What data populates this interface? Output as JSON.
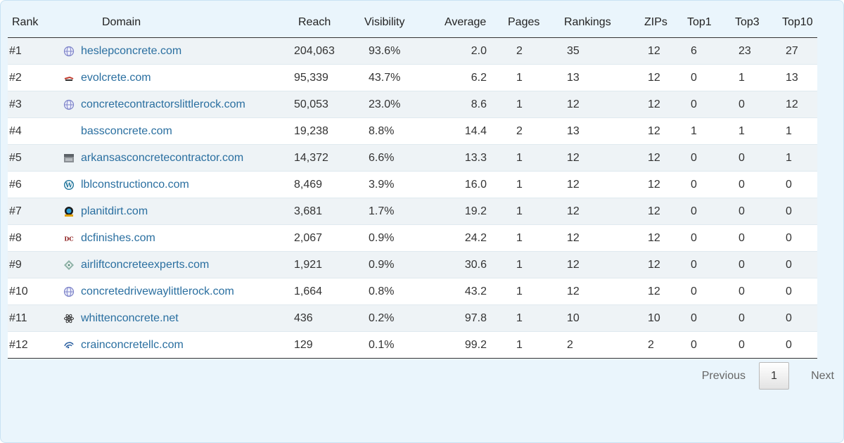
{
  "colors": {
    "panel_background": "#eaf5fc",
    "link": "#2a6fa0",
    "stripe": "#eef3f6"
  },
  "table": {
    "headers": {
      "rank": "Rank",
      "domain": "Domain",
      "reach": "Reach",
      "visibility": "Visibility",
      "average": "Average",
      "pages": "Pages",
      "rankings": "Rankings",
      "zips": "ZIPs",
      "top1": "Top1",
      "top3": "Top3",
      "top10": "Top10"
    },
    "rows": [
      {
        "rank": "#1",
        "icon": "globe-icon",
        "domain": "heslepconcrete.com",
        "reach": "204,063",
        "visibility": "93.6%",
        "average": "2.0",
        "pages": "2",
        "rankings": "35",
        "zips": "12",
        "top1": "6",
        "top3": "23",
        "top10": "27"
      },
      {
        "rank": "#2",
        "icon": "evolcrete-logo-icon",
        "domain": "evolcrete.com",
        "reach": "95,339",
        "visibility": "43.7%",
        "average": "6.2",
        "pages": "1",
        "rankings": "13",
        "zips": "12",
        "top1": "0",
        "top3": "1",
        "top10": "13"
      },
      {
        "rank": "#3",
        "icon": "globe-icon",
        "domain": "concretecontractorslittlerock.com",
        "reach": "50,053",
        "visibility": "23.0%",
        "average": "8.6",
        "pages": "1",
        "rankings": "12",
        "zips": "12",
        "top1": "0",
        "top3": "0",
        "top10": "12"
      },
      {
        "rank": "#4",
        "icon": "blank-icon",
        "domain": "bassconcrete.com",
        "reach": "19,238",
        "visibility": "8.8%",
        "average": "14.4",
        "pages": "2",
        "rankings": "13",
        "zips": "12",
        "top1": "1",
        "top3": "1",
        "top10": "1"
      },
      {
        "rank": "#5",
        "icon": "photo-thumbnail-icon",
        "domain": "arkansasconcretecontractor.com",
        "reach": "14,372",
        "visibility": "6.6%",
        "average": "13.3",
        "pages": "1",
        "rankings": "12",
        "zips": "12",
        "top1": "0",
        "top3": "0",
        "top10": "1"
      },
      {
        "rank": "#6",
        "icon": "wordpress-icon",
        "domain": "lblconstructionco.com",
        "reach": "8,469",
        "visibility": "3.9%",
        "average": "16.0",
        "pages": "1",
        "rankings": "12",
        "zips": "12",
        "top1": "0",
        "top3": "0",
        "top10": "0"
      },
      {
        "rank": "#7",
        "icon": "planitdirt-logo-icon",
        "domain": "planitdirt.com",
        "reach": "3,681",
        "visibility": "1.7%",
        "average": "19.2",
        "pages": "1",
        "rankings": "12",
        "zips": "12",
        "top1": "0",
        "top3": "0",
        "top10": "0"
      },
      {
        "rank": "#8",
        "icon": "dc-logo-icon",
        "domain": "dcfinishes.com",
        "reach": "2,067",
        "visibility": "0.9%",
        "average": "24.2",
        "pages": "1",
        "rankings": "12",
        "zips": "12",
        "top1": "0",
        "top3": "0",
        "top10": "0"
      },
      {
        "rank": "#9",
        "icon": "diamond-logo-icon",
        "domain": "airliftconcreteexperts.com",
        "reach": "1,921",
        "visibility": "0.9%",
        "average": "30.6",
        "pages": "1",
        "rankings": "12",
        "zips": "12",
        "top1": "0",
        "top3": "0",
        "top10": "0"
      },
      {
        "rank": "#10",
        "icon": "globe-icon",
        "domain": "concretedrivewaylittlerock.com",
        "reach": "1,664",
        "visibility": "0.8%",
        "average": "43.2",
        "pages": "1",
        "rankings": "12",
        "zips": "12",
        "top1": "0",
        "top3": "0",
        "top10": "0"
      },
      {
        "rank": "#11",
        "icon": "atom-icon",
        "domain": "whittenconcrete.net",
        "reach": "436",
        "visibility": "0.2%",
        "average": "97.8",
        "pages": "1",
        "rankings": "10",
        "zips": "10",
        "top1": "0",
        "top3": "0",
        "top10": "0"
      },
      {
        "rank": "#12",
        "icon": "swirl-logo-icon",
        "domain": "crainconcretellc.com",
        "reach": "129",
        "visibility": "0.1%",
        "average": "99.2",
        "pages": "1",
        "rankings": "2",
        "zips": "2",
        "top1": "0",
        "top3": "0",
        "top10": "0"
      }
    ]
  },
  "pagination": {
    "previous_label": "Previous",
    "current_page": "1",
    "next_label": "Next"
  }
}
